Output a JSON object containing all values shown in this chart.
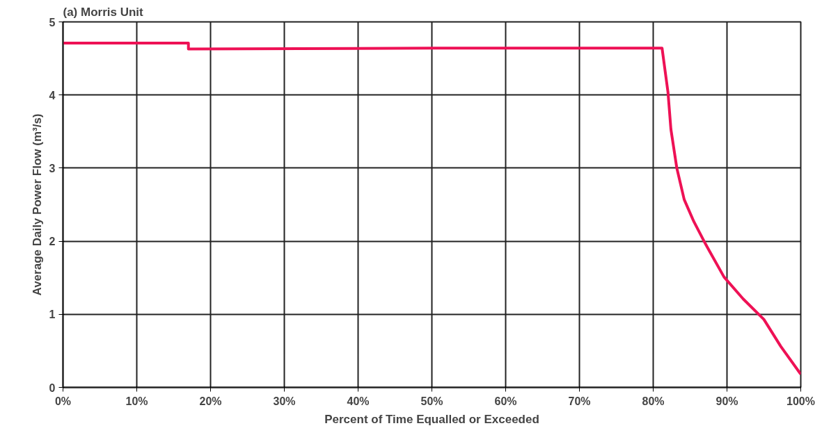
{
  "chart_data": {
    "type": "line",
    "title": "(a) Morris Unit",
    "xlabel": "Percent of Time Equalled or Exceeded",
    "ylabel": "Average Daily Power Flow (m³/s)",
    "series": [
      {
        "color": "#ee1155",
        "x": [
          0,
          17,
          17,
          50,
          81.2,
          82.0,
          82.4,
          83.2,
          84.2,
          85.5,
          87.1,
          89.6,
          92.2,
          95.0,
          97.3,
          100
        ],
        "values": [
          4.71,
          4.71,
          4.63,
          4.64,
          4.64,
          4.04,
          3.53,
          3.0,
          2.57,
          2.27,
          1.96,
          1.51,
          1.21,
          0.93,
          0.56,
          0.18
        ]
      }
    ],
    "xlim": [
      0,
      100
    ],
    "xticks": [
      {
        "value": 0,
        "label": "0%"
      },
      {
        "value": 10,
        "label": "10%"
      },
      {
        "value": 20,
        "label": "20%"
      },
      {
        "value": 30,
        "label": "30%"
      },
      {
        "value": 40,
        "label": "40%"
      },
      {
        "value": 50,
        "label": "50%"
      },
      {
        "value": 60,
        "label": "60%"
      },
      {
        "value": 70,
        "label": "70%"
      },
      {
        "value": 80,
        "label": "80%"
      },
      {
        "value": 90,
        "label": "90%"
      },
      {
        "value": 100,
        "label": "100%"
      }
    ],
    "ylim": [
      0,
      5
    ],
    "yticks": [
      0,
      1,
      2,
      3,
      4,
      5
    ],
    "grid": true,
    "marker": "none",
    "line_style": "solid"
  }
}
